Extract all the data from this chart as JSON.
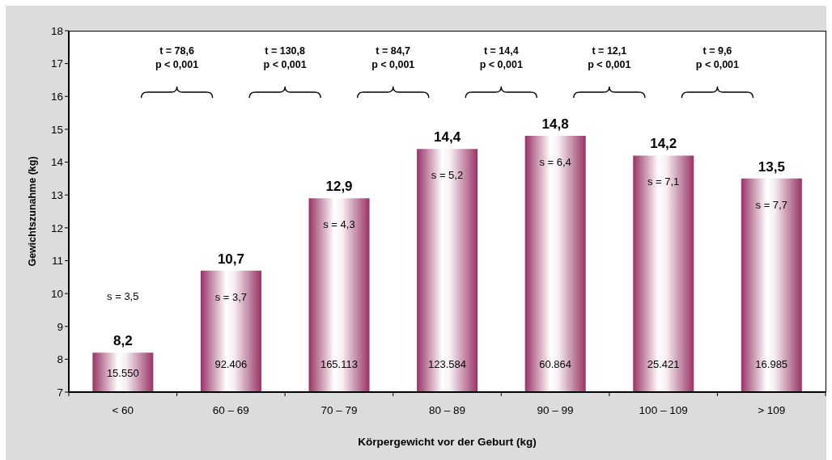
{
  "chart_data": {
    "type": "bar",
    "xlabel": "Körpergewicht vor der Geburt (kg)",
    "ylabel": "Gewichtszunahme (kg)",
    "categories": [
      "< 60",
      "60 – 69",
      "70 – 79",
      "80 – 89",
      "90 – 99",
      "100 – 109",
      "> 109"
    ],
    "values": [
      8.2,
      10.7,
      12.9,
      14.4,
      14.8,
      14.2,
      13.5
    ],
    "value_labels": [
      "8,2",
      "10,7",
      "12,9",
      "14,4",
      "14,8",
      "14,2",
      "13,5"
    ],
    "color": "#993366",
    "ylim": [
      7,
      18
    ],
    "yticks": [
      7,
      8,
      9,
      10,
      11,
      12,
      13,
      14,
      15,
      16,
      17,
      18
    ],
    "annotations": [
      "t = 78,6\np < 0,001",
      "t = 130,8\np < 0,001",
      "t = 84,7\np < 0,001",
      "t = 14,4\np < 0,001",
      "t = 12,1\np < 0,001",
      "t = 9,6\np < 0,001",
      "s = 3,5",
      "s = 3,7",
      "s = 4,3",
      "s = 5,2",
      "s = 6,4",
      "s = 7,1",
      "s = 7,7",
      "15.550",
      "92.406",
      "165.113",
      "123.584",
      "60.864",
      "25.421",
      "16.985"
    ]
  }
}
